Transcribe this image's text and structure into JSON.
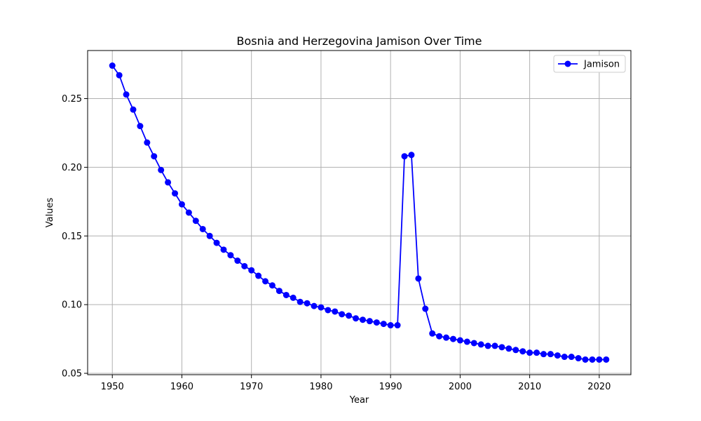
{
  "chart_data": {
    "type": "line",
    "title": "Bosnia and Herzegovina Jamison Over Time",
    "xlabel": "Year",
    "ylabel": "Values",
    "xlim": [
      1946.45,
      2024.55
    ],
    "ylim": [
      0.049,
      0.285
    ],
    "xticks": [
      1950,
      1960,
      1970,
      1980,
      1990,
      2000,
      2010,
      2020
    ],
    "yticks": [
      0.05,
      0.1,
      0.15,
      0.2,
      0.25
    ],
    "ytick_labels": [
      "0.05",
      "0.10",
      "0.15",
      "0.20",
      "0.25"
    ],
    "grid": true,
    "legend_position": "top-right",
    "series": [
      {
        "name": "Jamison",
        "color": "#0000ff",
        "x": [
          1950,
          1951,
          1952,
          1953,
          1954,
          1955,
          1956,
          1957,
          1958,
          1959,
          1960,
          1961,
          1962,
          1963,
          1964,
          1965,
          1966,
          1967,
          1968,
          1969,
          1970,
          1971,
          1972,
          1973,
          1974,
          1975,
          1976,
          1977,
          1978,
          1979,
          1980,
          1981,
          1982,
          1983,
          1984,
          1985,
          1986,
          1987,
          1988,
          1989,
          1990,
          1991,
          1992,
          1993,
          1994,
          1995,
          1996,
          1997,
          1998,
          1999,
          2000,
          2001,
          2002,
          2003,
          2004,
          2005,
          2006,
          2007,
          2008,
          2009,
          2010,
          2011,
          2012,
          2013,
          2014,
          2015,
          2016,
          2017,
          2018,
          2019,
          2020,
          2021
        ],
        "y": [
          0.274,
          0.267,
          0.253,
          0.242,
          0.23,
          0.218,
          0.208,
          0.198,
          0.189,
          0.181,
          0.173,
          0.167,
          0.161,
          0.155,
          0.15,
          0.145,
          0.14,
          0.136,
          0.132,
          0.128,
          0.125,
          0.121,
          0.117,
          0.114,
          0.11,
          0.107,
          0.105,
          0.102,
          0.101,
          0.099,
          0.098,
          0.096,
          0.095,
          0.093,
          0.092,
          0.09,
          0.089,
          0.088,
          0.087,
          0.086,
          0.085,
          0.085,
          0.208,
          0.209,
          0.119,
          0.097,
          0.079,
          0.077,
          0.076,
          0.075,
          0.074,
          0.073,
          0.072,
          0.071,
          0.07,
          0.07,
          0.069,
          0.068,
          0.067,
          0.066,
          0.065,
          0.065,
          0.064,
          0.064,
          0.063,
          0.062,
          0.062,
          0.061,
          0.06,
          0.06,
          0.06,
          0.06
        ]
      }
    ]
  }
}
